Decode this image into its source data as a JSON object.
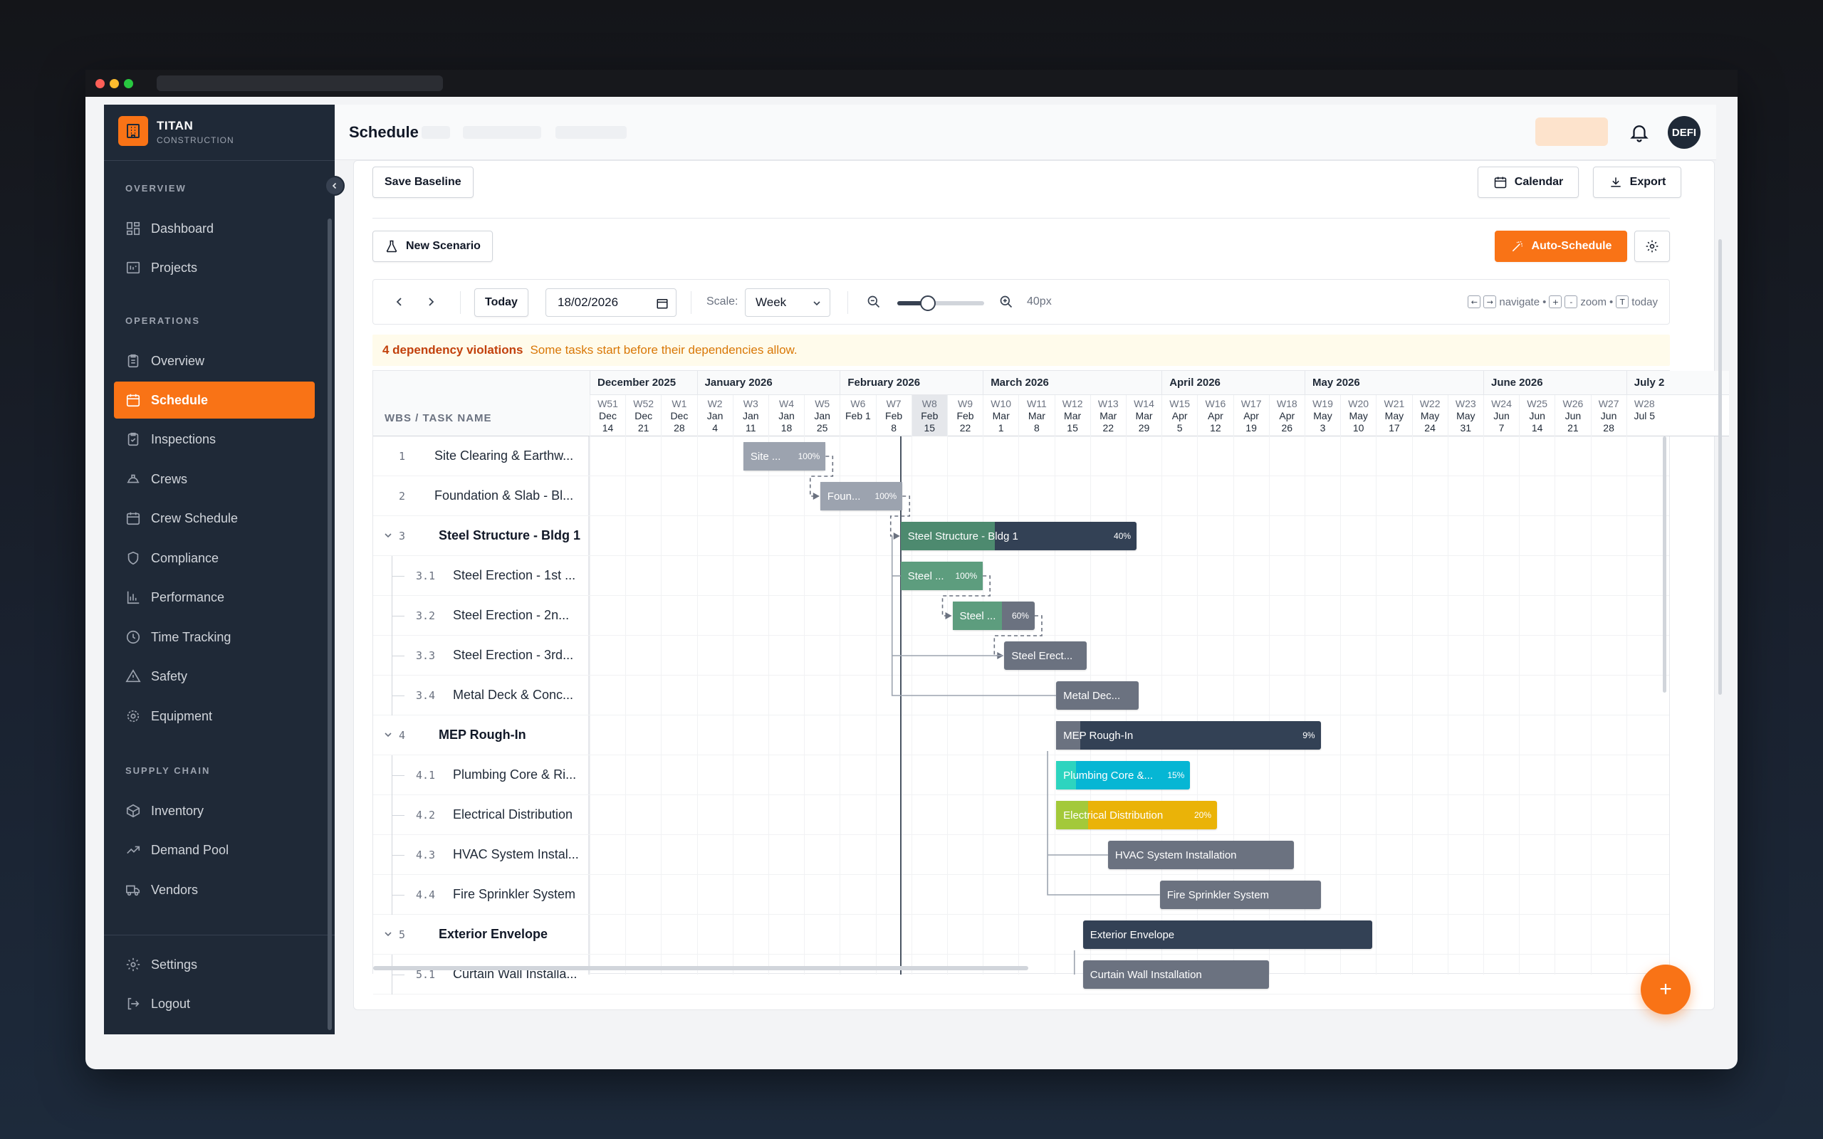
{
  "brand": {
    "name": "TITAN",
    "subtitle": "CONSTRUCTION"
  },
  "sidebar": {
    "sections": [
      {
        "label": "OVERVIEW"
      },
      {
        "label": "OPERATIONS"
      },
      {
        "label": "SUPPLY CHAIN"
      }
    ],
    "items": [
      {
        "label": "Dashboard",
        "icon": "dashboard-icon"
      },
      {
        "label": "Projects",
        "icon": "folder-icon"
      },
      {
        "label": "Overview",
        "icon": "clipboard-icon"
      },
      {
        "label": "Schedule",
        "icon": "calendar-icon",
        "active": true
      },
      {
        "label": "Inspections",
        "icon": "clipboard-check-icon"
      },
      {
        "label": "Crews",
        "icon": "hardhat-icon"
      },
      {
        "label": "Crew Schedule",
        "icon": "calendar-icon"
      },
      {
        "label": "Compliance",
        "icon": "shield-icon"
      },
      {
        "label": "Performance",
        "icon": "bar-chart-icon"
      },
      {
        "label": "Time Tracking",
        "icon": "clock-icon"
      },
      {
        "label": "Safety",
        "icon": "warning-icon"
      },
      {
        "label": "Equipment",
        "icon": "cog-icon"
      },
      {
        "label": "Inventory",
        "icon": "box-icon"
      },
      {
        "label": "Demand Pool",
        "icon": "trend-icon"
      },
      {
        "label": "Vendors",
        "icon": "truck-icon"
      }
    ],
    "footer": [
      {
        "label": "Settings",
        "icon": "gear-icon"
      },
      {
        "label": "Logout",
        "icon": "logout-icon"
      }
    ]
  },
  "header": {
    "title": "Schedule",
    "avatar_text": "DEFI"
  },
  "toolbar": {
    "save_baseline": "Save Baseline",
    "calendar": "Calendar",
    "export": "Export",
    "new_scenario": "New Scenario",
    "auto_schedule": "Auto-Schedule"
  },
  "controls": {
    "today": "Today",
    "date_value": "18/02/2026",
    "scale_label": "Scale:",
    "scale_value": "Week",
    "zoom_value": "40px",
    "zoom_level": 0.35,
    "hint_navigate": "navigate",
    "hint_zoom": "zoom",
    "hint_today": "today",
    "key_left": "←",
    "key_right": "→",
    "key_plus": "+",
    "key_minus": "-",
    "key_t": "T",
    "bullet": "•"
  },
  "alert": {
    "title": "4 dependency violations",
    "message": "Some tasks start before their dependencies allow."
  },
  "gantt": {
    "task_header": "WBS / TASK NAME",
    "months": [
      {
        "label": "December 2025",
        "weeks": 3
      },
      {
        "label": "January 2026",
        "weeks": 4
      },
      {
        "label": "February 2026",
        "weeks": 4
      },
      {
        "label": "March 2026",
        "weeks": 5
      },
      {
        "label": "April 2026",
        "weeks": 4
      },
      {
        "label": "May 2026",
        "weeks": 5
      },
      {
        "label": "June 2026",
        "weeks": 4
      },
      {
        "label": "July 2",
        "weeks": 1
      }
    ],
    "weeks": [
      {
        "wk": "W51",
        "m": "Dec",
        "d": "14"
      },
      {
        "wk": "W52",
        "m": "Dec",
        "d": "21"
      },
      {
        "wk": "W1",
        "m": "Dec",
        "d": "28"
      },
      {
        "wk": "W2",
        "m": "Jan",
        "d": "4"
      },
      {
        "wk": "W3",
        "m": "Jan",
        "d": "11"
      },
      {
        "wk": "W4",
        "m": "Jan",
        "d": "18"
      },
      {
        "wk": "W5",
        "m": "Jan",
        "d": "25"
      },
      {
        "wk": "W6",
        "m": "Feb 1",
        "d": "",
        "single": true
      },
      {
        "wk": "W7",
        "m": "Feb",
        "d": "8"
      },
      {
        "wk": "W8",
        "m": "Feb",
        "d": "15",
        "current": true
      },
      {
        "wk": "W9",
        "m": "Feb",
        "d": "22"
      },
      {
        "wk": "W10",
        "m": "Mar",
        "d": "1"
      },
      {
        "wk": "W11",
        "m": "Mar",
        "d": "8"
      },
      {
        "wk": "W12",
        "m": "Mar",
        "d": "15"
      },
      {
        "wk": "W13",
        "m": "Mar",
        "d": "22"
      },
      {
        "wk": "W14",
        "m": "Mar",
        "d": "29"
      },
      {
        "wk": "W15",
        "m": "Apr",
        "d": "5"
      },
      {
        "wk": "W16",
        "m": "Apr",
        "d": "12"
      },
      {
        "wk": "W17",
        "m": "Apr",
        "d": "19"
      },
      {
        "wk": "W18",
        "m": "Apr",
        "d": "26"
      },
      {
        "wk": "W19",
        "m": "May",
        "d": "3"
      },
      {
        "wk": "W20",
        "m": "May",
        "d": "10"
      },
      {
        "wk": "W21",
        "m": "May",
        "d": "17"
      },
      {
        "wk": "W22",
        "m": "May",
        "d": "24"
      },
      {
        "wk": "W23",
        "m": "May",
        "d": "31"
      },
      {
        "wk": "W24",
        "m": "Jun",
        "d": "7"
      },
      {
        "wk": "W25",
        "m": "Jun",
        "d": "14"
      },
      {
        "wk": "W26",
        "m": "Jun",
        "d": "21"
      },
      {
        "wk": "W27",
        "m": "Jun",
        "d": "28"
      },
      {
        "wk": "W28",
        "m": "Jul 5",
        "d": "",
        "single": true
      }
    ],
    "tasks": [
      {
        "wbs": "1",
        "name": "Site Clearing & Earthw...",
        "level": 0,
        "parent": false,
        "bar": {
          "label": "Site ...",
          "pct": "100%",
          "progress": 1.0,
          "start_week": 4.3,
          "weeks": 2.3,
          "color": "#9ca3af",
          "fill": "#9ca3af"
        }
      },
      {
        "wbs": "2",
        "name": "Foundation & Slab - Bl...",
        "level": 0,
        "parent": false,
        "bar": {
          "label": "Foun...",
          "pct": "100%",
          "progress": 1.0,
          "start_week": 6.45,
          "weeks": 2.3,
          "color": "#9ca3af",
          "fill": "#9ca3af"
        }
      },
      {
        "wbs": "3",
        "name": "Steel Structure - Bldg 1",
        "level": 0,
        "parent": true,
        "bar": {
          "label": "Steel Structure - Bldg 1",
          "pct": "40%",
          "progress": 0.4,
          "start_week": 8.7,
          "weeks": 6.6,
          "color": "#334155",
          "fill": "#4d8a6f"
        }
      },
      {
        "wbs": "3.1",
        "name": "Steel Erection - 1st ...",
        "level": 1,
        "parent": false,
        "bar": {
          "label": "Steel ...",
          "pct": "100%",
          "progress": 1.0,
          "start_week": 8.7,
          "weeks": 2.3,
          "color": "#5d9d7e",
          "fill": "#5d9d7e"
        }
      },
      {
        "wbs": "3.2",
        "name": "Steel Erection - 2n...",
        "level": 1,
        "parent": false,
        "bar": {
          "label": "Steel ...",
          "pct": "60%",
          "progress": 0.6,
          "start_week": 10.15,
          "weeks": 2.3,
          "color": "#6b7280",
          "fill": "#5d9d7e"
        }
      },
      {
        "wbs": "3.3",
        "name": "Steel Erection - 3rd...",
        "level": 1,
        "parent": false,
        "bar": {
          "label": "Steel Erect...",
          "pct": "",
          "progress": 0,
          "start_week": 11.6,
          "weeks": 2.3,
          "color": "#6b7280",
          "fill": "#6b7280"
        }
      },
      {
        "wbs": "3.4",
        "name": "Metal Deck & Conc...",
        "level": 1,
        "parent": false,
        "bar": {
          "label": "Metal Dec...",
          "pct": "",
          "progress": 0,
          "start_week": 13.05,
          "weeks": 2.3,
          "color": "#6b7280",
          "fill": "#6b7280"
        }
      },
      {
        "wbs": "4",
        "name": "MEP Rough-In",
        "level": 0,
        "parent": true,
        "bar": {
          "label": "MEP Rough-In",
          "pct": "9%",
          "progress": 0.09,
          "start_week": 13.05,
          "weeks": 7.4,
          "color": "#334155",
          "fill": "#6b7280"
        }
      },
      {
        "wbs": "4.1",
        "name": "Plumbing Core & Ri...",
        "level": 1,
        "parent": false,
        "bar": {
          "label": "Plumbing Core &...",
          "pct": "15%",
          "progress": 0.15,
          "start_week": 13.05,
          "weeks": 3.75,
          "color": "#06b6d4",
          "fill": "#2dd4bf"
        }
      },
      {
        "wbs": "4.2",
        "name": "Electrical Distribution",
        "level": 1,
        "parent": false,
        "bar": {
          "label": "Electrical Distribution",
          "pct": "20%",
          "progress": 0.2,
          "start_week": 13.05,
          "weeks": 4.5,
          "color": "#eab308",
          "fill": "#a3c93a"
        }
      },
      {
        "wbs": "4.3",
        "name": "HVAC System Instal...",
        "level": 1,
        "parent": false,
        "bar": {
          "label": "HVAC System Installation",
          "pct": "",
          "progress": 0,
          "start_week": 14.5,
          "weeks": 5.2,
          "color": "#6b7280",
          "fill": "#6b7280"
        }
      },
      {
        "wbs": "4.4",
        "name": "Fire Sprinkler System",
        "level": 1,
        "parent": false,
        "bar": {
          "label": "Fire Sprinkler System",
          "pct": "",
          "progress": 0,
          "start_week": 15.95,
          "weeks": 4.5,
          "color": "#6b7280",
          "fill": "#6b7280"
        }
      },
      {
        "wbs": "5",
        "name": "Exterior Envelope",
        "level": 0,
        "parent": true,
        "bar": {
          "label": "Exterior Envelope",
          "pct": "",
          "progress": 0,
          "start_week": 13.8,
          "weeks": 8.1,
          "color": "#334155",
          "fill": "#334155"
        }
      },
      {
        "wbs": "5.1",
        "name": "Curtain Wall Installa...",
        "level": 1,
        "parent": false,
        "bar": {
          "label": "Curtain Wall Installation",
          "pct": "",
          "progress": 0,
          "start_week": 13.8,
          "weeks": 5.2,
          "color": "#6b7280",
          "fill": "#6b7280"
        }
      }
    ],
    "today_week": 8.7
  },
  "fab_label": "+"
}
